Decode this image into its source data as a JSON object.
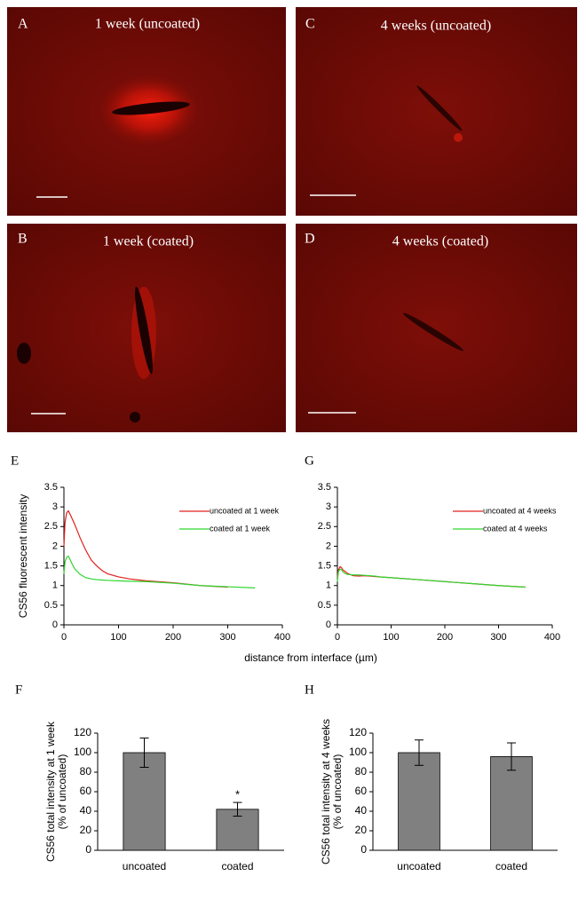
{
  "images": [
    {
      "label": "A",
      "title": "1 week (uncoated)"
    },
    {
      "label": "C",
      "title": "4 weeks (uncoated)"
    },
    {
      "label": "B",
      "title": "1 week (coated)"
    },
    {
      "label": "D",
      "title": "4 weeks (coated)"
    }
  ],
  "chart_data": [
    {
      "type": "line",
      "panel": "E",
      "ylabel": "CS56 fluorescent intensity",
      "xlabel": "distance from interface (µm)",
      "x": [
        0,
        2,
        5,
        8,
        10,
        15,
        20,
        30,
        40,
        50,
        60,
        70,
        80,
        100,
        120,
        150,
        200,
        250,
        300,
        350
      ],
      "series": [
        {
          "name": "uncoated at 1 week",
          "color": "#e0201c",
          "values": [
            2.0,
            2.6,
            2.85,
            2.9,
            2.85,
            2.7,
            2.55,
            2.2,
            1.9,
            1.65,
            1.5,
            1.38,
            1.3,
            1.22,
            1.17,
            1.12,
            1.07,
            1.0,
            0.96,
            null
          ]
        },
        {
          "name": "coated at 1 week",
          "color": "#2ed62e",
          "values": [
            1.3,
            1.6,
            1.72,
            1.75,
            1.7,
            1.55,
            1.42,
            1.28,
            1.2,
            1.17,
            1.15,
            1.14,
            1.13,
            1.12,
            1.11,
            1.1,
            1.06,
            1.0,
            0.97,
            0.94
          ]
        }
      ],
      "xlim": [
        0,
        400
      ],
      "xticks": [
        0,
        100,
        200,
        300,
        400
      ],
      "ylim": [
        0,
        3.5
      ],
      "yticks": [
        0,
        0.5,
        1,
        1.5,
        2,
        2.5,
        3,
        3.5
      ]
    },
    {
      "type": "line",
      "panel": "G",
      "x": [
        0,
        2,
        5,
        8,
        10,
        15,
        20,
        30,
        40,
        50,
        60,
        70,
        80,
        100,
        120,
        150,
        200,
        250,
        300,
        350
      ],
      "series": [
        {
          "name": "uncoated at 4 weeks",
          "color": "#e0201c",
          "values": [
            1.2,
            1.4,
            1.48,
            1.45,
            1.4,
            1.35,
            1.3,
            1.25,
            1.24,
            1.25,
            1.24,
            1.23,
            1.22,
            1.2,
            1.18,
            1.15,
            1.1,
            1.05,
            1.0,
            0.96
          ]
        },
        {
          "name": "coated at 4 weeks",
          "color": "#2ed62e",
          "values": [
            1.1,
            1.35,
            1.42,
            1.4,
            1.35,
            1.3,
            1.28,
            1.27,
            1.27,
            1.26,
            1.25,
            1.24,
            1.22,
            1.2,
            1.18,
            1.15,
            1.1,
            1.05,
            1.0,
            0.96
          ]
        }
      ],
      "xlim": [
        0,
        400
      ],
      "xticks": [
        0,
        100,
        200,
        300,
        400
      ],
      "ylim": [
        0,
        3.5
      ],
      "yticks": [
        0,
        0.5,
        1,
        1.5,
        2,
        2.5,
        3,
        3.5
      ]
    },
    {
      "type": "bar",
      "panel": "F",
      "ylabel": [
        "CS56 total intensity at 1 week",
        "(% of uncoated)"
      ],
      "categories": [
        "uncoated",
        "coated"
      ],
      "values": [
        100,
        42
      ],
      "errors": [
        15,
        7
      ],
      "color": "#808080",
      "annotation": {
        "text": "*",
        "category": "coated"
      },
      "ylim": [
        0,
        120
      ],
      "yticks": [
        0,
        20,
        40,
        60,
        80,
        100,
        120
      ]
    },
    {
      "type": "bar",
      "panel": "H",
      "ylabel": [
        "CS56 total intensity at 4 weeks",
        "(% of uncoated)"
      ],
      "categories": [
        "uncoated",
        "coated"
      ],
      "values": [
        100,
        96
      ],
      "errors": [
        13,
        14
      ],
      "color": "#808080",
      "ylim": [
        0,
        120
      ],
      "yticks": [
        0,
        20,
        40,
        60,
        80,
        100,
        120
      ]
    }
  ]
}
